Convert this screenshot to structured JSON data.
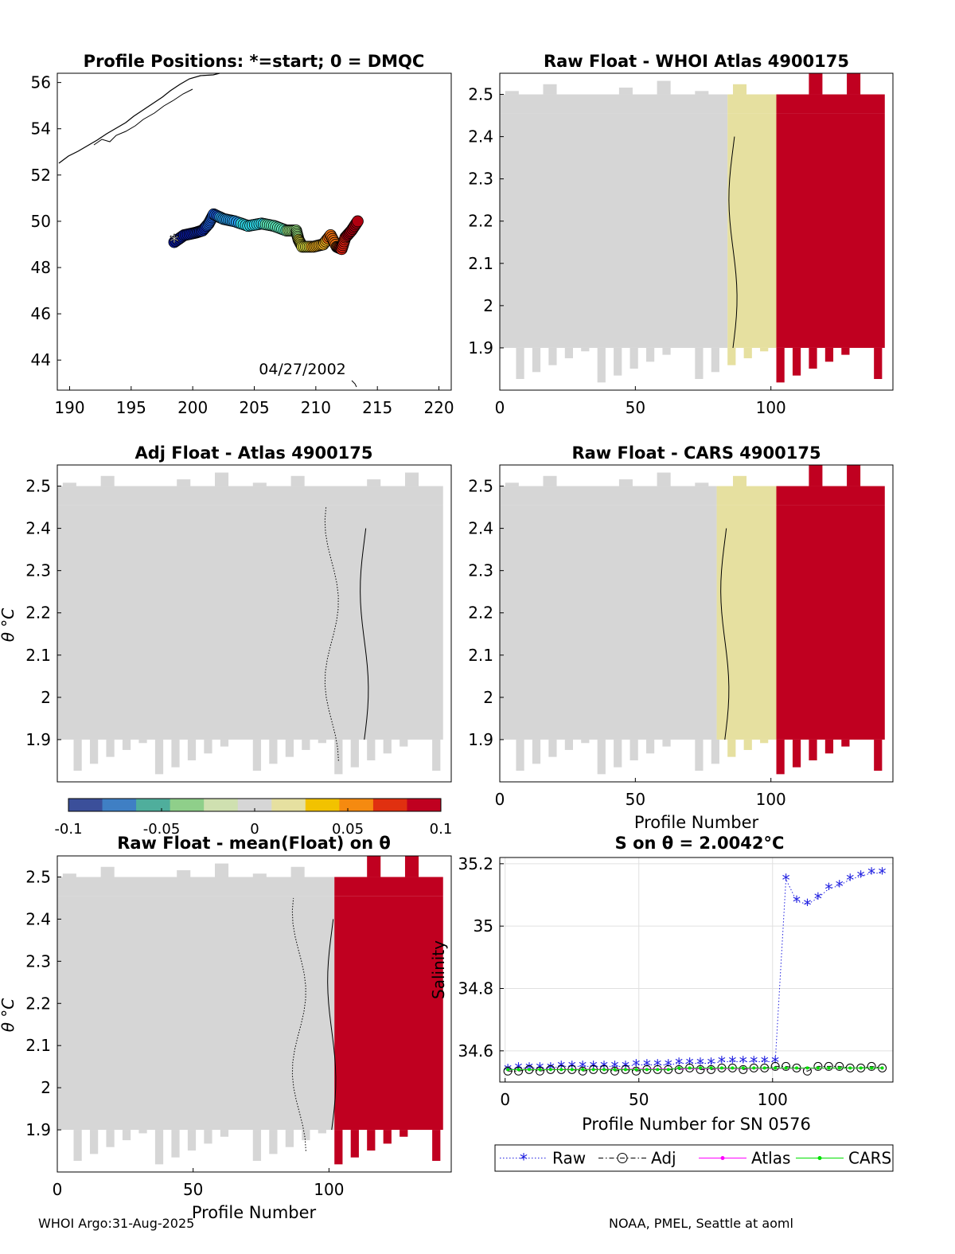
{
  "footer": {
    "left": "WHOI Argo:31-Aug-2025",
    "right": "NOAA, PMEL, Seattle at aoml"
  },
  "colorbar": {
    "ticks": [
      "-0.1",
      "-0.05",
      "0",
      "0.05",
      "0.1"
    ],
    "colors": [
      "#3b4f9a",
      "#3f7fc4",
      "#4fae9c",
      "#8fcf8a",
      "#cfe0b0",
      "#d6d6d6",
      "#e6e0a0",
      "#f2c200",
      "#f58a10",
      "#e03010",
      "#c00020"
    ]
  },
  "chart_data": [
    {
      "type": "scatter",
      "title": "Profile Positions: *=start; 0 = DMQC",
      "date_label": "04/27/2002",
      "xlim": [
        189,
        221
      ],
      "ylim": [
        42.7,
        56.4
      ],
      "xticks": [
        "190",
        "195",
        "200",
        "205",
        "210",
        "215",
        "220"
      ],
      "yticks": [
        "44",
        "46",
        "48",
        "50",
        "52",
        "54",
        "56"
      ],
      "track": [
        [
          198.5,
          49.1
        ],
        [
          199.3,
          49.4
        ],
        [
          200.2,
          49.5
        ],
        [
          200.8,
          49.6
        ],
        [
          201.3,
          49.9
        ],
        [
          201.7,
          50.3
        ],
        [
          202.5,
          50.1
        ],
        [
          203.4,
          50.0
        ],
        [
          204.5,
          49.8
        ],
        [
          205.6,
          49.9
        ],
        [
          206.6,
          49.8
        ],
        [
          207.6,
          49.6
        ],
        [
          208.4,
          49.6
        ],
        [
          208.6,
          49.2
        ],
        [
          208.9,
          48.9
        ],
        [
          209.8,
          48.9
        ],
        [
          210.6,
          49.0
        ],
        [
          211.2,
          49.4
        ],
        [
          211.7,
          48.9
        ],
        [
          212.1,
          48.8
        ],
        [
          212.4,
          49.3
        ],
        [
          212.9,
          49.6
        ],
        [
          213.4,
          50.0
        ]
      ]
    },
    {
      "type": "heatmap",
      "title": "Raw Float - WHOI Atlas  4900175",
      "xlim": [
        0,
        145
      ],
      "ylim": [
        1.8,
        2.55
      ],
      "xticks": [
        "0",
        "50",
        "100"
      ],
      "yticks": [
        "1.9",
        "2",
        "2.1",
        "2.2",
        "2.3",
        "2.4",
        "2.5"
      ],
      "xlabel": "",
      "ylabel": "",
      "bands": [
        {
          "from": 0,
          "to": 84,
          "value": 0.0
        },
        {
          "from": 84,
          "to": 102,
          "value": 0.02
        },
        {
          "from": 102,
          "to": 142,
          "value": 0.1
        }
      ],
      "contour_x": 86
    },
    {
      "type": "heatmap",
      "title": "Adj Float - Atlas  4900175",
      "xlim": [
        0,
        145
      ],
      "ylim": [
        1.8,
        2.55
      ],
      "xticks": [],
      "yticks": [
        "1.9",
        "2",
        "2.1",
        "2.2",
        "2.3",
        "2.4",
        "2.5"
      ],
      "xlabel": "",
      "ylabel": "θ °C",
      "bands": [
        {
          "from": 0,
          "to": 142,
          "value": 0.0
        }
      ],
      "contour_x": 113
    },
    {
      "type": "heatmap",
      "title": "Raw Float - CARS  4900175",
      "xlim": [
        0,
        145
      ],
      "ylim": [
        1.8,
        2.55
      ],
      "xticks": [
        "0",
        "50",
        "100"
      ],
      "yticks": [
        "1.9",
        "2",
        "2.1",
        "2.2",
        "2.3",
        "2.4",
        "2.5"
      ],
      "xlabel": "Profile Number",
      "ylabel": "",
      "bands": [
        {
          "from": 0,
          "to": 80,
          "value": 0.0
        },
        {
          "from": 80,
          "to": 102,
          "value": 0.02
        },
        {
          "from": 102,
          "to": 142,
          "value": 0.1
        }
      ],
      "contour_x": 83
    },
    {
      "type": "heatmap",
      "title": "Raw Float - mean(Float) on θ",
      "xlim": [
        0,
        145
      ],
      "ylim": [
        1.8,
        2.55
      ],
      "xticks": [
        "0",
        "50",
        "100"
      ],
      "yticks": [
        "1.9",
        "2",
        "2.1",
        "2.2",
        "2.3",
        "2.4",
        "2.5"
      ],
      "xlabel": "Profile Number",
      "ylabel": "θ °C",
      "bands": [
        {
          "from": 0,
          "to": 102,
          "value": 0.0
        },
        {
          "from": 102,
          "to": 142,
          "value": 0.1
        }
      ],
      "contour_x": 101
    },
    {
      "type": "line",
      "title": "S on θ = 2.0042°C",
      "xlim": [
        -2,
        145
      ],
      "ylim": [
        34.5,
        35.22
      ],
      "xticks": [
        "0",
        "50",
        "100"
      ],
      "yticks": [
        "34.6",
        "34.8",
        "35",
        "35.2"
      ],
      "xlabel": "Profile Number for SN 0576",
      "ylabel": "Salinity",
      "legend": [
        "Raw",
        "Adj",
        "Atlas",
        "CARS"
      ],
      "series": [
        {
          "name": "Raw",
          "x": [
            1,
            5,
            9,
            13,
            17,
            21,
            25,
            29,
            33,
            37,
            41,
            45,
            49,
            53,
            57,
            61,
            65,
            69,
            73,
            77,
            81,
            85,
            89,
            93,
            97,
            101,
            105,
            109,
            113,
            117,
            121,
            125,
            129,
            133,
            137,
            141
          ],
          "y": [
            34.54,
            34.545,
            34.545,
            34.545,
            34.545,
            34.55,
            34.55,
            34.55,
            34.55,
            34.55,
            34.55,
            34.55,
            34.555,
            34.555,
            34.555,
            34.555,
            34.56,
            34.56,
            34.56,
            34.56,
            34.565,
            34.565,
            34.565,
            34.565,
            34.565,
            34.565,
            35.15,
            35.08,
            35.07,
            35.09,
            35.12,
            35.13,
            35.15,
            35.16,
            35.17,
            35.17
          ]
        },
        {
          "name": "Adj",
          "x": [
            1,
            5,
            9,
            13,
            17,
            21,
            25,
            29,
            33,
            37,
            41,
            45,
            49,
            53,
            57,
            61,
            65,
            69,
            73,
            77,
            81,
            85,
            89,
            93,
            97,
            101,
            105,
            109,
            113,
            117,
            121,
            125,
            129,
            133,
            137,
            141
          ],
          "y": [
            34.535,
            34.535,
            34.54,
            34.535,
            34.54,
            34.54,
            34.54,
            34.535,
            34.54,
            34.54,
            34.535,
            34.54,
            34.535,
            34.54,
            34.54,
            34.54,
            34.54,
            34.545,
            34.54,
            34.54,
            34.545,
            34.545,
            34.54,
            34.545,
            34.545,
            34.55,
            34.55,
            34.545,
            34.535,
            34.55,
            34.55,
            34.55,
            34.545,
            34.545,
            34.55,
            34.545
          ]
        },
        {
          "name": "Atlas",
          "x": [
            1,
            141
          ],
          "y": [
            34.54,
            34.545
          ]
        },
        {
          "name": "CARS",
          "x": [
            1,
            5,
            9,
            13,
            17,
            21,
            25,
            29,
            33,
            37,
            41,
            45,
            49,
            53,
            57,
            61,
            65,
            69,
            73,
            77,
            81,
            85,
            89,
            93,
            97,
            101,
            105,
            109,
            113,
            117,
            121,
            125,
            129,
            133,
            137,
            141
          ],
          "y": [
            34.54,
            34.54,
            34.54,
            34.54,
            34.54,
            34.54,
            34.54,
            34.54,
            34.54,
            34.54,
            34.54,
            34.54,
            34.54,
            34.54,
            34.54,
            34.54,
            34.545,
            34.545,
            34.545,
            34.545,
            34.545,
            34.545,
            34.545,
            34.545,
            34.545,
            34.545,
            34.545,
            34.545,
            34.545,
            34.545,
            34.545,
            34.545,
            34.545,
            34.545,
            34.545,
            34.545
          ]
        }
      ]
    }
  ]
}
